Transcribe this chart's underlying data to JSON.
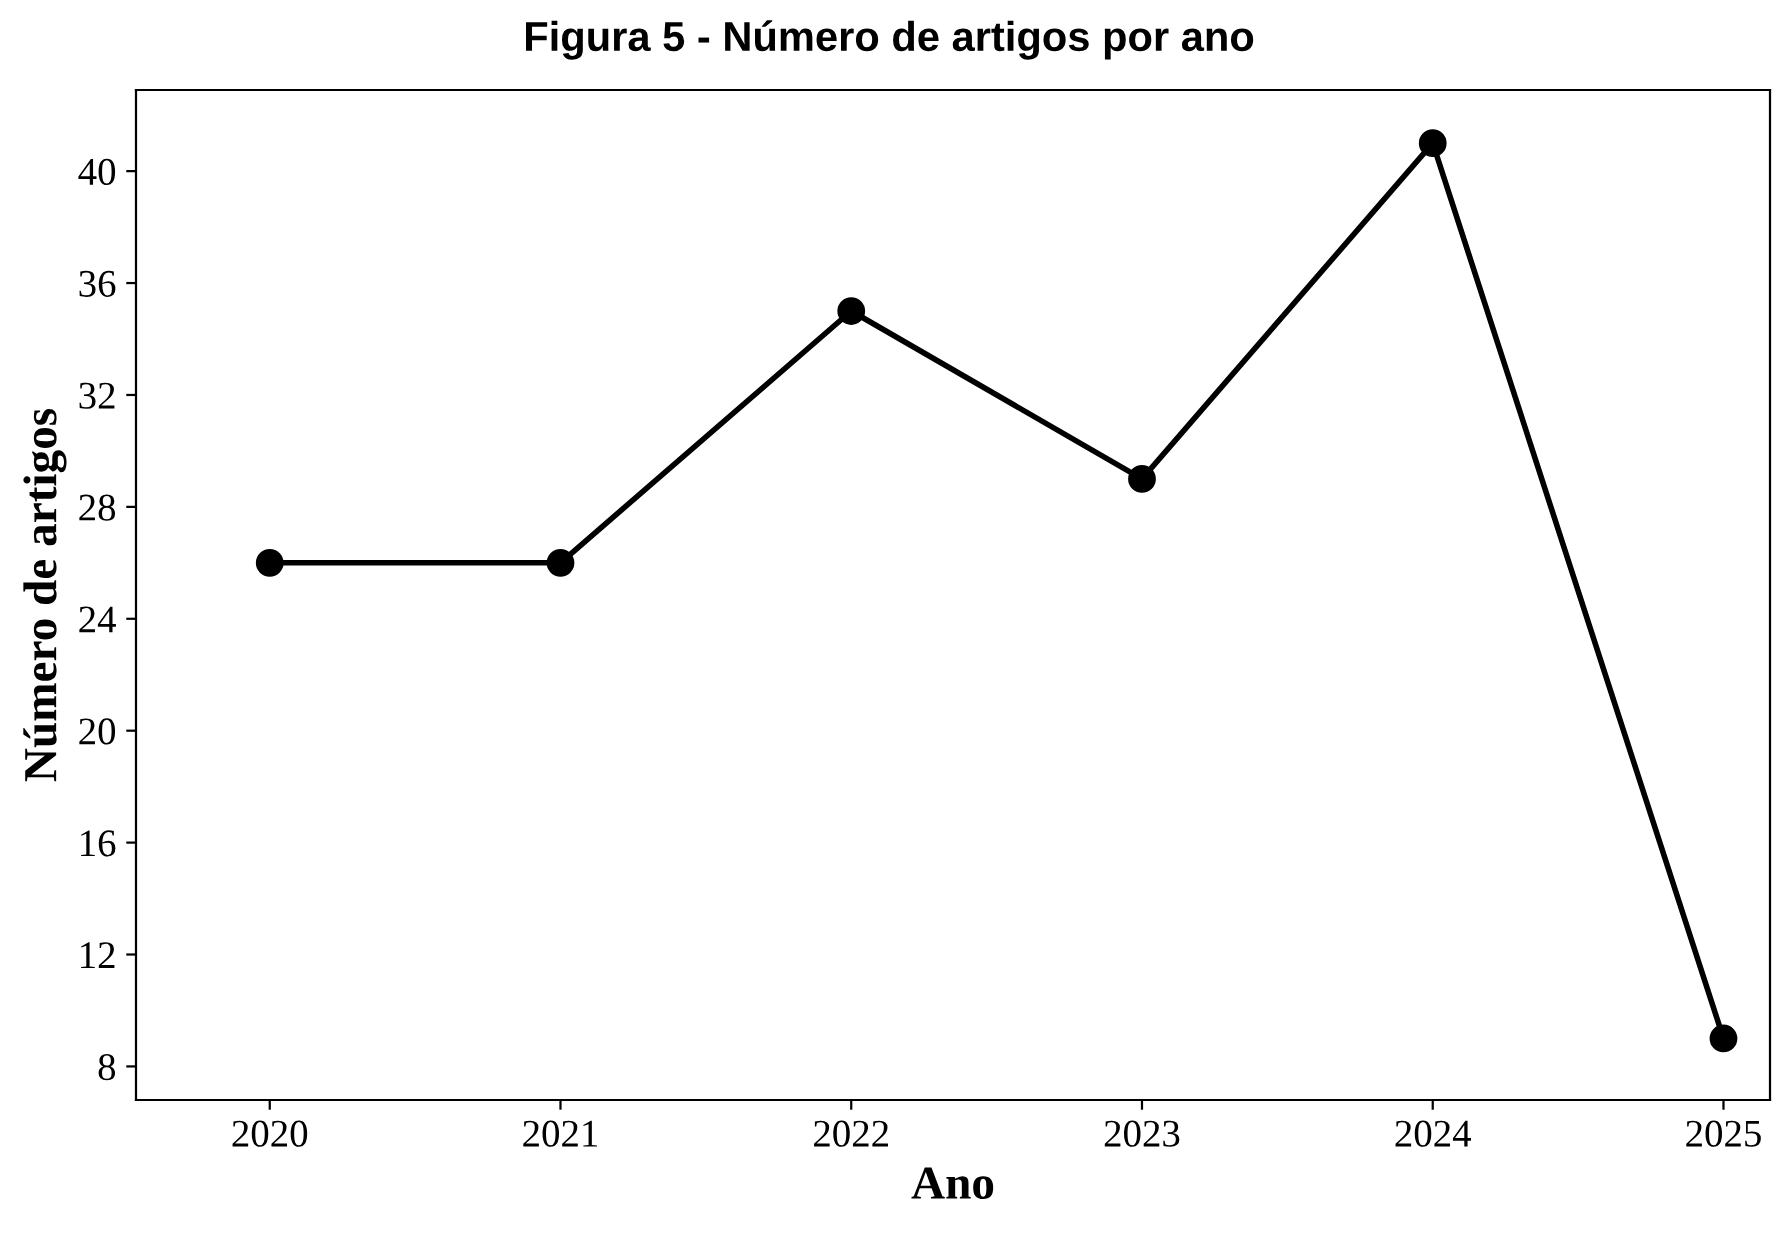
{
  "chart_data": {
    "type": "line",
    "title": "Figura 5 - Número de artigos por ano",
    "xlabel": "Ano",
    "ylabel": "Número de artigos",
    "x": [
      2020,
      2021,
      2022,
      2023,
      2024,
      2025
    ],
    "series": [
      {
        "color": "#000000",
        "values": [
          26,
          26,
          35,
          29,
          41,
          9
        ]
      }
    ],
    "xlim": [
      2019.54,
      2025.16
    ],
    "xticks": [
      2020,
      2021,
      2022,
      2023,
      2024,
      2025
    ],
    "ylim": [
      6.8,
      42.9
    ],
    "yticks": [
      8,
      12,
      16,
      20,
      24,
      28,
      32,
      36,
      40
    ],
    "grid": false,
    "marker": "circle",
    "line_style": "solid"
  }
}
